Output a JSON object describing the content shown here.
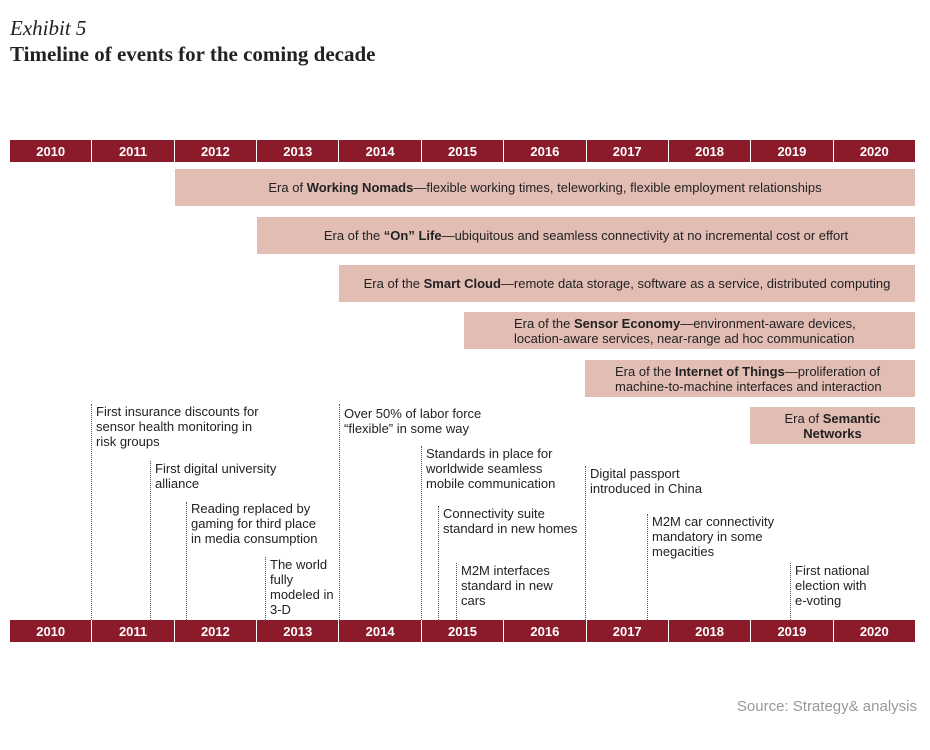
{
  "header": {
    "exhibit": "Exhibit 5",
    "title": "Timeline of events for the coming decade"
  },
  "years": [
    "2010",
    "2011",
    "2012",
    "2013",
    "2014",
    "2015",
    "2016",
    "2017",
    "2018",
    "2019",
    "2020"
  ],
  "eras": [
    {
      "prefix": "Era of ",
      "bold": "Working Nomads",
      "rest": "—flexible working times, teleworking, flexible employment relationships"
    },
    {
      "prefix": "Era of the ",
      "bold": "“On” Life",
      "rest": "—ubiquitous and seamless connectivity at no incremental cost or effort"
    },
    {
      "prefix": "Era of the ",
      "bold": "Smart Cloud",
      "rest": "—remote data storage, software as a service, distributed computing"
    },
    {
      "prefix": "Era of the ",
      "bold": "Sensor Economy",
      "rest": "—environment-aware devices, location-aware services, near-range ad hoc communication"
    },
    {
      "prefix": "Era of the ",
      "bold": "Internet of Things",
      "rest": "—proliferation of machine-to-machine interfaces and interaction"
    },
    {
      "prefix": "Era of ",
      "bold": "Semantic Networks",
      "rest": ""
    }
  ],
  "events": [
    {
      "text": "First insurance discounts for sensor health monitoring in risk groups"
    },
    {
      "text": "First digital university alliance"
    },
    {
      "text": "Reading replaced by gaming for third place in media consumption"
    },
    {
      "text": "The world fully modeled in 3-D"
    },
    {
      "text": "Over 50% of labor force “flexible” in some way"
    },
    {
      "text": "Standards in place for worldwide seamless mobile communication"
    },
    {
      "text": "Connectivity suite standard in new homes"
    },
    {
      "text": "M2M interfaces standard in new cars"
    },
    {
      "text": "Digital passport introduced in China"
    },
    {
      "text": "M2M car connectivity mandatory in some megacities"
    },
    {
      "text": "First national election with e-voting"
    }
  ],
  "source": "Source: Strategy& analysis"
}
